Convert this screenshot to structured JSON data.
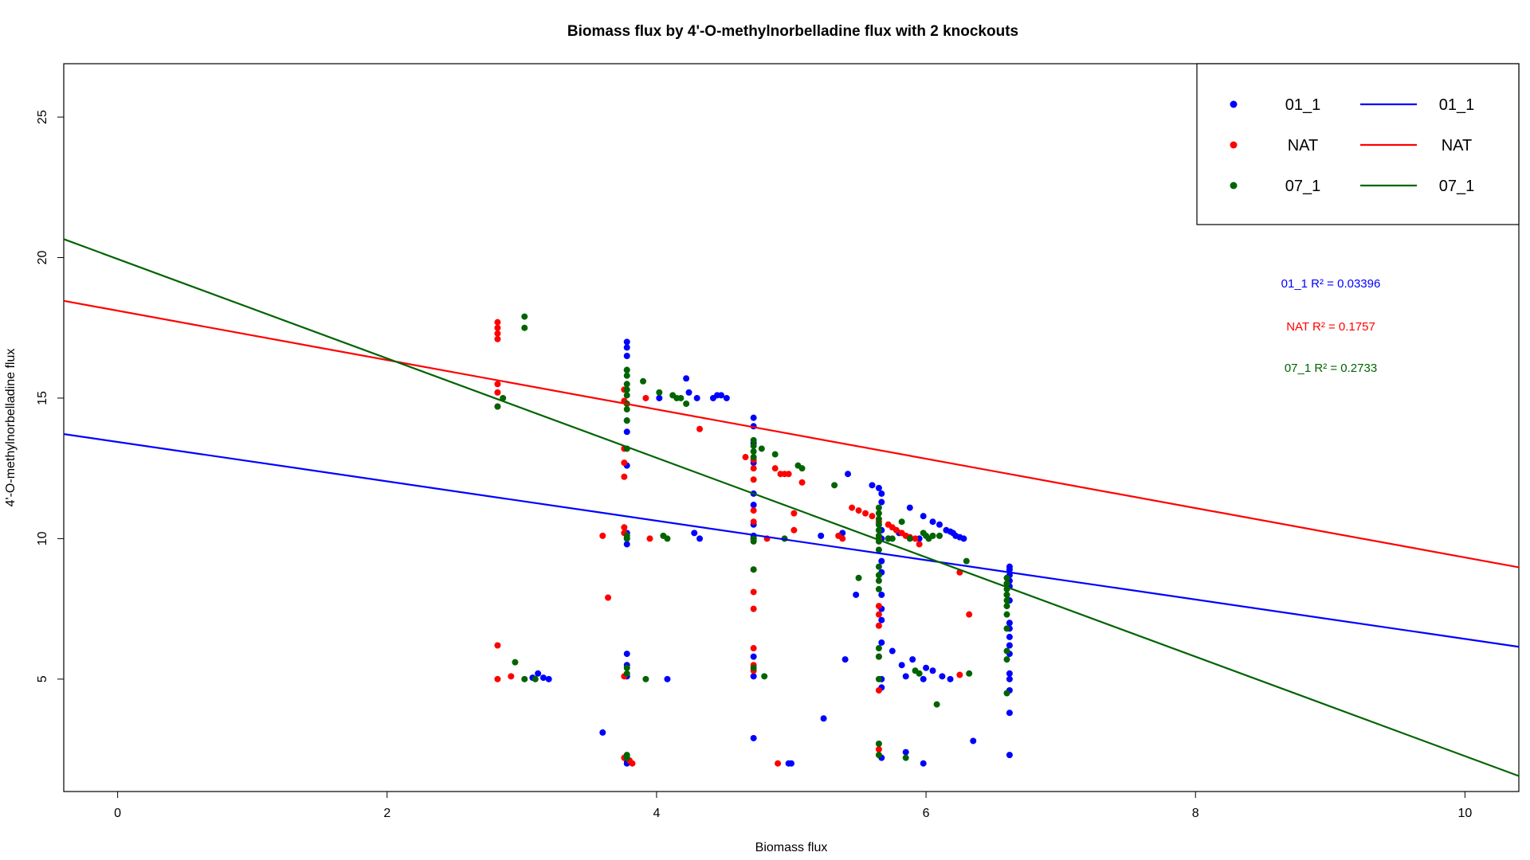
{
  "chart_data": {
    "type": "scatter",
    "title": "Biomass flux by 4'-O-methylnorbelladine flux with 2 knockouts",
    "xlabel": "Biomass flux",
    "ylabel": "4'-O-methylnorbelladine flux",
    "xlim": [
      -0.4,
      10.4
    ],
    "ylim": [
      1.0,
      26.9
    ],
    "xticks": [
      0,
      2,
      4,
      6,
      8,
      10
    ],
    "yticks": [
      5,
      10,
      15,
      20,
      25
    ],
    "grid": false,
    "legend_position": "top-right",
    "legend": {
      "points": [
        "01_1",
        "NAT",
        "07_1"
      ],
      "lines": [
        "01_1",
        "NAT",
        "07_1"
      ]
    },
    "colors": {
      "01_1": "#0000ff",
      "NAT": "#ff0000",
      "07_1": "#006400"
    },
    "series": [
      {
        "name": "01_1",
        "color": "#0000ff",
        "points": [
          [
            3.08,
            5.05
          ],
          [
            3.12,
            5.2
          ],
          [
            3.16,
            5.05
          ],
          [
            3.2,
            5.0
          ],
          [
            3.6,
            3.1
          ],
          [
            3.78,
            17.0
          ],
          [
            3.78,
            16.8
          ],
          [
            3.78,
            16.5
          ],
          [
            3.78,
            16.0
          ],
          [
            3.78,
            14.2
          ],
          [
            3.78,
            13.8
          ],
          [
            3.78,
            12.6
          ],
          [
            3.78,
            10.2
          ],
          [
            3.78,
            10.0
          ],
          [
            3.78,
            9.8
          ],
          [
            3.78,
            5.9
          ],
          [
            3.78,
            5.5
          ],
          [
            3.78,
            5.1
          ],
          [
            3.78,
            2.1
          ],
          [
            3.78,
            2.0
          ],
          [
            4.02,
            15.0
          ],
          [
            4.08,
            5.0
          ],
          [
            4.22,
            15.7
          ],
          [
            4.24,
            15.2
          ],
          [
            4.28,
            10.2
          ],
          [
            4.3,
            15.0
          ],
          [
            4.32,
            10.0
          ],
          [
            4.42,
            15.0
          ],
          [
            4.45,
            15.1
          ],
          [
            4.48,
            15.1
          ],
          [
            4.52,
            15.0
          ],
          [
            4.72,
            14.3
          ],
          [
            4.72,
            14.0
          ],
          [
            4.72,
            13.4
          ],
          [
            4.72,
            12.7
          ],
          [
            4.72,
            11.6
          ],
          [
            4.72,
            11.2
          ],
          [
            4.72,
            10.5
          ],
          [
            4.72,
            10.1
          ],
          [
            4.72,
            10.0
          ],
          [
            4.72,
            5.8
          ],
          [
            4.72,
            5.1
          ],
          [
            4.72,
            2.9
          ],
          [
            4.98,
            2.0
          ],
          [
            5.0,
            2.0
          ],
          [
            5.22,
            10.1
          ],
          [
            5.24,
            3.6
          ],
          [
            5.38,
            10.2
          ],
          [
            5.4,
            5.7
          ],
          [
            5.42,
            12.3
          ],
          [
            5.48,
            8.0
          ],
          [
            5.6,
            11.9
          ],
          [
            5.65,
            11.8
          ],
          [
            5.67,
            11.6
          ],
          [
            5.67,
            11.3
          ],
          [
            5.67,
            10.3
          ],
          [
            5.67,
            10.0
          ],
          [
            5.67,
            9.2
          ],
          [
            5.67,
            8.8
          ],
          [
            5.67,
            8.0
          ],
          [
            5.67,
            7.5
          ],
          [
            5.67,
            7.1
          ],
          [
            5.67,
            6.3
          ],
          [
            5.67,
            5.0
          ],
          [
            5.67,
            4.7
          ],
          [
            5.67,
            2.2
          ],
          [
            5.72,
            10.0
          ],
          [
            5.75,
            6.0
          ],
          [
            5.8,
            10.2
          ],
          [
            5.82,
            5.5
          ],
          [
            5.85,
            5.1
          ],
          [
            5.85,
            2.4
          ],
          [
            5.88,
            11.1
          ],
          [
            5.9,
            5.7
          ],
          [
            5.95,
            10.0
          ],
          [
            5.98,
            10.8
          ],
          [
            5.98,
            5.0
          ],
          [
            5.98,
            2.0
          ],
          [
            6.0,
            5.4
          ],
          [
            6.05,
            5.3
          ],
          [
            6.05,
            10.6
          ],
          [
            6.1,
            10.5
          ],
          [
            6.12,
            5.1
          ],
          [
            6.15,
            10.3
          ],
          [
            6.18,
            10.25
          ],
          [
            6.2,
            10.2
          ],
          [
            6.22,
            10.1
          ],
          [
            6.25,
            10.05
          ],
          [
            6.28,
            10.0
          ],
          [
            6.18,
            5.0
          ],
          [
            6.35,
            2.8
          ],
          [
            6.62,
            9.0
          ],
          [
            6.62,
            8.9
          ],
          [
            6.62,
            8.7
          ],
          [
            6.62,
            8.5
          ],
          [
            6.62,
            8.3
          ],
          [
            6.62,
            7.8
          ],
          [
            6.62,
            7.0
          ],
          [
            6.62,
            6.8
          ],
          [
            6.62,
            6.5
          ],
          [
            6.62,
            6.2
          ],
          [
            6.62,
            5.9
          ],
          [
            6.62,
            5.2
          ],
          [
            6.62,
            5.0
          ],
          [
            6.62,
            4.6
          ],
          [
            6.62,
            3.8
          ],
          [
            6.62,
            2.3
          ]
        ],
        "fit": {
          "intercept": 13.44,
          "slope": -0.701,
          "r2": "0.03396"
        }
      },
      {
        "name": "NAT",
        "color": "#ff0000",
        "points": [
          [
            2.82,
            17.7
          ],
          [
            2.82,
            17.5
          ],
          [
            2.82,
            17.3
          ],
          [
            2.82,
            17.1
          ],
          [
            2.82,
            15.5
          ],
          [
            2.82,
            15.2
          ],
          [
            2.82,
            14.7
          ],
          [
            2.82,
            6.2
          ],
          [
            2.82,
            5.0
          ],
          [
            2.92,
            5.1
          ],
          [
            3.6,
            10.1
          ],
          [
            3.64,
            7.9
          ],
          [
            3.76,
            15.3
          ],
          [
            3.76,
            14.9
          ],
          [
            3.76,
            13.2
          ],
          [
            3.76,
            12.7
          ],
          [
            3.76,
            12.2
          ],
          [
            3.76,
            10.4
          ],
          [
            3.76,
            10.2
          ],
          [
            3.76,
            5.1
          ],
          [
            3.76,
            2.2
          ],
          [
            3.8,
            2.1
          ],
          [
            3.82,
            2.0
          ],
          [
            3.92,
            15.0
          ],
          [
            3.95,
            10.0
          ],
          [
            4.32,
            13.9
          ],
          [
            4.66,
            12.9
          ],
          [
            4.72,
            12.8
          ],
          [
            4.72,
            12.5
          ],
          [
            4.72,
            12.1
          ],
          [
            4.72,
            11.0
          ],
          [
            4.72,
            10.6
          ],
          [
            4.72,
            10.0
          ],
          [
            4.72,
            8.9
          ],
          [
            4.72,
            8.1
          ],
          [
            4.72,
            7.5
          ],
          [
            4.72,
            6.1
          ],
          [
            4.72,
            5.5
          ],
          [
            4.72,
            5.3
          ],
          [
            4.82,
            10.0
          ],
          [
            4.88,
            12.5
          ],
          [
            4.92,
            12.3
          ],
          [
            4.95,
            12.3
          ],
          [
            4.98,
            12.3
          ],
          [
            5.02,
            10.3
          ],
          [
            5.02,
            10.9
          ],
          [
            5.08,
            12.0
          ],
          [
            4.9,
            2.0
          ],
          [
            5.35,
            10.1
          ],
          [
            5.38,
            10.0
          ],
          [
            5.45,
            11.1
          ],
          [
            5.5,
            11.0
          ],
          [
            5.55,
            10.9
          ],
          [
            5.6,
            10.8
          ],
          [
            5.65,
            10.6
          ],
          [
            5.65,
            10.0
          ],
          [
            5.65,
            7.6
          ],
          [
            5.65,
            7.3
          ],
          [
            5.65,
            6.9
          ],
          [
            5.65,
            5.8
          ],
          [
            5.65,
            4.6
          ],
          [
            5.65,
            2.5
          ],
          [
            5.72,
            10.5
          ],
          [
            5.75,
            10.4
          ],
          [
            5.78,
            10.3
          ],
          [
            5.82,
            10.2
          ],
          [
            5.85,
            10.1
          ],
          [
            5.88,
            10.05
          ],
          [
            5.92,
            10.0
          ],
          [
            5.95,
            9.8
          ],
          [
            6.25,
            8.8
          ],
          [
            6.25,
            5.15
          ],
          [
            6.32,
            7.3
          ],
          [
            6.6,
            8.4
          ],
          [
            6.6,
            8.0
          ]
        ],
        "fit": {
          "intercept": 18.11,
          "slope": -0.878,
          "r2": "0.1757"
        }
      },
      {
        "name": "07_1",
        "color": "#006400",
        "points": [
          [
            2.82,
            14.7
          ],
          [
            2.86,
            15.0
          ],
          [
            2.95,
            5.6
          ],
          [
            3.02,
            17.9
          ],
          [
            3.02,
            17.5
          ],
          [
            3.02,
            5.0
          ],
          [
            3.1,
            5.0
          ],
          [
            3.78,
            16.0
          ],
          [
            3.78,
            15.8
          ],
          [
            3.78,
            15.5
          ],
          [
            3.78,
            15.3
          ],
          [
            3.78,
            15.1
          ],
          [
            3.78,
            14.8
          ],
          [
            3.78,
            14.6
          ],
          [
            3.78,
            14.2
          ],
          [
            3.78,
            13.2
          ],
          [
            3.78,
            10.1
          ],
          [
            3.78,
            10.0
          ],
          [
            3.78,
            5.4
          ],
          [
            3.78,
            5.2
          ],
          [
            3.78,
            2.3
          ],
          [
            3.78,
            2.2
          ],
          [
            3.9,
            15.6
          ],
          [
            3.92,
            5.0
          ],
          [
            4.02,
            15.2
          ],
          [
            4.05,
            10.1
          ],
          [
            4.08,
            10.0
          ],
          [
            4.12,
            15.1
          ],
          [
            4.15,
            15.0
          ],
          [
            4.18,
            15.0
          ],
          [
            4.22,
            14.8
          ],
          [
            4.72,
            13.5
          ],
          [
            4.72,
            13.3
          ],
          [
            4.72,
            13.1
          ],
          [
            4.72,
            12.9
          ],
          [
            4.72,
            10.0
          ],
          [
            4.72,
            9.9
          ],
          [
            4.72,
            8.9
          ],
          [
            4.72,
            5.4
          ],
          [
            4.78,
            13.2
          ],
          [
            4.8,
            5.1
          ],
          [
            4.88,
            13.0
          ],
          [
            4.95,
            10.0
          ],
          [
            5.05,
            12.6
          ],
          [
            5.08,
            12.5
          ],
          [
            5.32,
            11.9
          ],
          [
            5.5,
            8.6
          ],
          [
            5.65,
            11.1
          ],
          [
            5.65,
            10.9
          ],
          [
            5.65,
            10.7
          ],
          [
            5.65,
            10.5
          ],
          [
            5.65,
            10.3
          ],
          [
            5.65,
            10.1
          ],
          [
            5.65,
            9.9
          ],
          [
            5.65,
            9.6
          ],
          [
            5.65,
            9.0
          ],
          [
            5.65,
            8.7
          ],
          [
            5.65,
            8.5
          ],
          [
            5.65,
            8.2
          ],
          [
            5.65,
            6.1
          ],
          [
            5.65,
            5.8
          ],
          [
            5.65,
            5.0
          ],
          [
            5.65,
            2.7
          ],
          [
            5.65,
            2.3
          ],
          [
            5.72,
            10.0
          ],
          [
            5.75,
            10.0
          ],
          [
            5.82,
            10.6
          ],
          [
            5.85,
            2.2
          ],
          [
            5.88,
            10.0
          ],
          [
            5.92,
            5.3
          ],
          [
            5.95,
            5.2
          ],
          [
            5.98,
            10.2
          ],
          [
            6.0,
            10.1
          ],
          [
            6.02,
            10.0
          ],
          [
            6.05,
            10.1
          ],
          [
            6.08,
            4.1
          ],
          [
            6.1,
            10.1
          ],
          [
            6.3,
            9.2
          ],
          [
            6.32,
            5.2
          ],
          [
            6.6,
            8.6
          ],
          [
            6.6,
            8.4
          ],
          [
            6.6,
            8.2
          ],
          [
            6.6,
            8.0
          ],
          [
            6.6,
            7.8
          ],
          [
            6.6,
            7.6
          ],
          [
            6.6,
            7.3
          ],
          [
            6.6,
            6.8
          ],
          [
            6.6,
            6.0
          ],
          [
            6.6,
            5.7
          ],
          [
            6.6,
            4.5
          ]
        ],
        "fit": {
          "intercept": 19.95,
          "slope": -1.769,
          "r2": "0.2733"
        }
      }
    ]
  }
}
